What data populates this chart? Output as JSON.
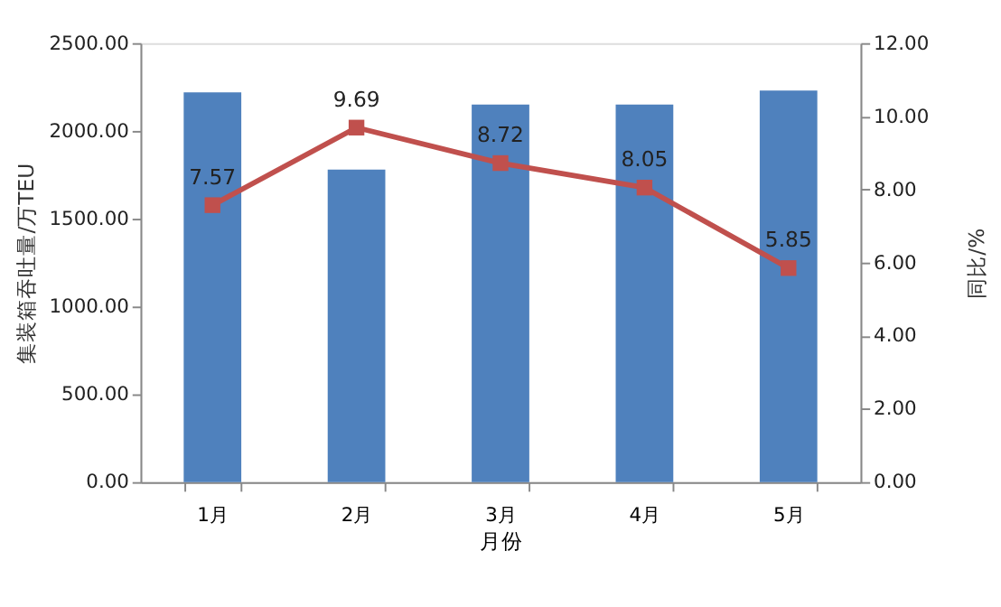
{
  "chart_data": {
    "type": "bar",
    "categories": [
      "1月",
      "2月",
      "3月",
      "4月",
      "5月"
    ],
    "xlabel": "月份",
    "ylabel": "集装箱吞吐量/万TEU",
    "y2label": "同比/%",
    "ylim": [
      0,
      2500
    ],
    "yticks": [
      {
        "value": 0,
        "label": "0.00"
      },
      {
        "value": 500,
        "label": "500.00"
      },
      {
        "value": 1000,
        "label": "1000.00"
      },
      {
        "value": 1500,
        "label": "1500.00"
      },
      {
        "value": 2000,
        "label": "2000.00"
      },
      {
        "value": 2500,
        "label": "2500.00"
      }
    ],
    "y2lim": [
      0,
      12
    ],
    "y2ticks": [
      {
        "value": 0,
        "label": "0.00"
      },
      {
        "value": 2,
        "label": "2.00"
      },
      {
        "value": 4,
        "label": "4.00"
      },
      {
        "value": 6,
        "label": "6.00"
      },
      {
        "value": 8,
        "label": "8.00"
      },
      {
        "value": 10,
        "label": "10.00"
      },
      {
        "value": 12,
        "label": "12.00"
      }
    ],
    "grid": false,
    "series": [
      {
        "color": "#4f81bd",
        "values": [
          2220,
          1780,
          2150,
          2150,
          2230
        ]
      },
      {
        "type": "line",
        "axis": "y2",
        "color": "#c0504d",
        "marker": "square",
        "line_style": "solid",
        "data_labels": true,
        "values": [
          7.57,
          9.69,
          8.72,
          8.05,
          5.85
        ]
      }
    ]
  }
}
